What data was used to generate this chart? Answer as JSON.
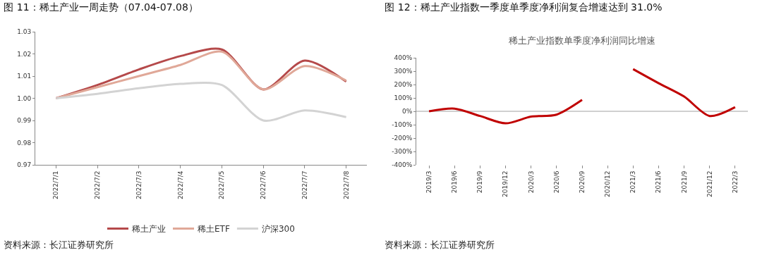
{
  "chart_data": [
    {
      "type": "line",
      "title": "图 11：稀土产业一周走势（07.04-07.08）",
      "categories": [
        "2022/7/1",
        "2022/7/2",
        "2022/7/3",
        "2022/7/4",
        "2022/7/5",
        "2022/7/6",
        "2022/7/7",
        "2022/7/8"
      ],
      "series": [
        {
          "name": "稀土产业",
          "color": "#b5494a",
          "values": [
            1.0,
            1.006,
            1.013,
            1.019,
            1.022,
            1.004,
            1.017,
            1.0075
          ]
        },
        {
          "name": "稀土ETF",
          "color": "#e0a898",
          "values": [
            1.0,
            1.005,
            1.01,
            1.015,
            1.021,
            1.004,
            1.0145,
            1.008
          ]
        },
        {
          "name": "沪深300",
          "color": "#d3d3d3",
          "values": [
            1.0,
            1.002,
            1.0045,
            1.0065,
            1.006,
            0.99,
            0.9945,
            0.9915
          ]
        }
      ],
      "ylim": [
        0.97,
        1.03
      ],
      "yticks": [
        0.97,
        0.98,
        0.99,
        {
          "value": 1,
          "label": "1.00"
        },
        1.01,
        1.02,
        1.03
      ],
      "grid": false,
      "legend": "bottom",
      "marker": "none",
      "line_style": "solid",
      "annotations": [
        "资料来源：长江证券研究所"
      ]
    },
    {
      "type": "line",
      "title": "图 12：稀土产业指数一季度单季度净利润复合增速达到 31.0%",
      "subtitle": "稀土产业指数单季度净利润同比增速",
      "categories": [
        "2019/3",
        "2019/6",
        "2019/9",
        "2019/12",
        "2020/3",
        "2020/6",
        "2020/9",
        "2020/12",
        "2021/3",
        "2021/6",
        "2021/9",
        "2021/12",
        "2022/3"
      ],
      "series": [
        {
          "color": "#c00000",
          "values": [
            0,
            20,
            -35,
            -90,
            -40,
            -25,
            85,
            null,
            315,
            210,
            110,
            -35,
            31
          ]
        }
      ],
      "ylim": [
        -400,
        400
      ],
      "yticks": [
        {
          "value": -400,
          "label": "-400%"
        },
        {
          "value": -300,
          "label": "-300%"
        },
        {
          "value": -200,
          "label": "-200%"
        },
        {
          "value": -100,
          "label": "-100%"
        },
        {
          "value": 0,
          "label": "0%"
        },
        {
          "value": 100,
          "label": "100%"
        },
        {
          "value": 200,
          "label": "200%"
        },
        {
          "value": 300,
          "label": "300%"
        },
        {
          "value": 400,
          "label": "400%"
        }
      ],
      "grid": false,
      "legend": false,
      "marker": "none",
      "line_style": "solid",
      "ref_lines": [
        {
          "axis": "y",
          "value": 0,
          "color": "#a0a0a0"
        }
      ],
      "annotations": [
        "资料来源：长江证券研究所"
      ]
    }
  ]
}
